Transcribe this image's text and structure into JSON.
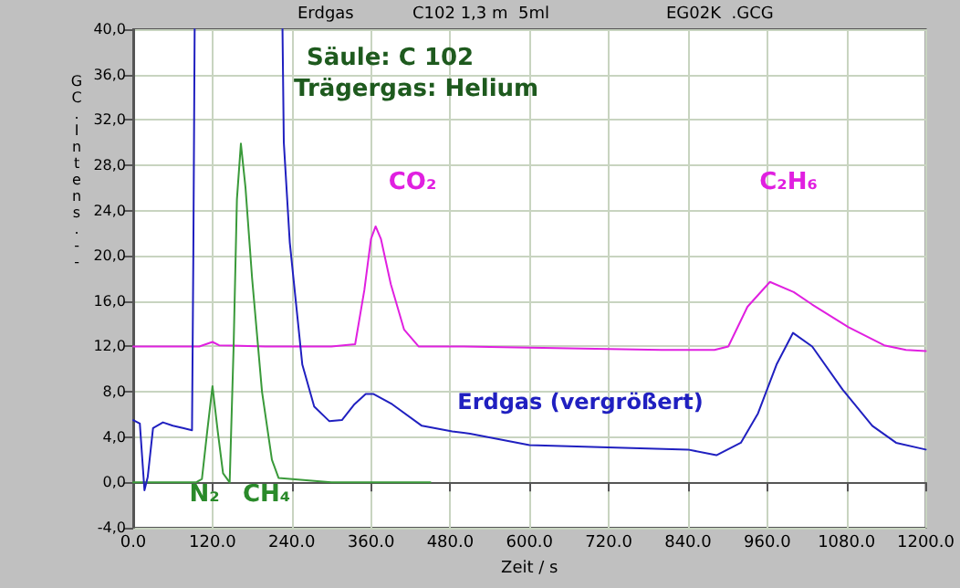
{
  "chart_data": {
    "type": "line",
    "xlabel": "Zeit / s",
    "ylabel": "GC.Intens.--",
    "xlim": [
      0,
      1200
    ],
    "xticks": [
      {
        "value": 0,
        "label": "0.0"
      },
      {
        "value": 120,
        "label": "120.0"
      },
      {
        "value": 240,
        "label": "240.0"
      },
      {
        "value": 360,
        "label": "360.0"
      },
      {
        "value": 480,
        "label": "480.0"
      },
      {
        "value": 600,
        "label": "600.0"
      },
      {
        "value": 720,
        "label": "720.0"
      },
      {
        "value": 840,
        "label": "840.0"
      },
      {
        "value": 960,
        "label": "960.0"
      },
      {
        "value": 1080,
        "label": "1080.0"
      },
      {
        "value": 1200,
        "label": "1200.0"
      }
    ],
    "ylim": [
      -4,
      40
    ],
    "yticks": [
      {
        "value": -4,
        "label": "-4,0"
      },
      {
        "value": 0,
        "label": "0,0"
      },
      {
        "value": 4,
        "label": "4,0"
      },
      {
        "value": 8,
        "label": "8,0"
      },
      {
        "value": 12,
        "label": "12,0"
      },
      {
        "value": 16,
        "label": "16,0"
      },
      {
        "value": 20,
        "label": "20,0"
      },
      {
        "value": 24,
        "label": "24,0"
      },
      {
        "value": 28,
        "label": "28,0"
      },
      {
        "value": 32,
        "label": "32,0"
      },
      {
        "value": 36,
        "label": "36,0"
      },
      {
        "value": 40,
        "label": "40,0"
      }
    ],
    "grid": true,
    "marker": "none",
    "line_style": "solid",
    "series": [
      {
        "color": "#e020e0",
        "x": [
          0,
          100,
          115,
          120,
          130,
          200,
          300,
          336,
          350,
          360,
          367,
          375,
          390,
          410,
          432,
          500,
          600,
          700,
          800,
          880,
          901,
          930,
          964,
          1000,
          1028,
          1083,
          1137,
          1170,
          1200
        ],
        "values": [
          12,
          12,
          12.3,
          12.4,
          12.1,
          12,
          12,
          12.2,
          17,
          21.5,
          22.6,
          21.5,
          17.5,
          13.5,
          12,
          12,
          11.9,
          11.8,
          11.7,
          11.7,
          12,
          15.5,
          17.7,
          16.8,
          15.7,
          13.7,
          12.1,
          11.7,
          11.6
        ]
      },
      {
        "color": "#3a9a3a",
        "x": [
          0,
          95,
          104,
          112,
          120,
          128,
          136,
          146,
          152,
          157,
          163,
          170,
          180,
          195,
          210,
          220,
          300,
          450
        ],
        "values": [
          0,
          0,
          0.3,
          4.5,
          8.5,
          4.5,
          0.8,
          0,
          12,
          25,
          29.9,
          26,
          18,
          8,
          2,
          0.4,
          0,
          0
        ]
      },
      {
        "color": "#2020c0",
        "x": [
          0,
          10,
          17,
          22,
          30,
          45,
          60,
          75,
          89,
          91,
          93,
          100,
          226,
          228,
          237,
          256,
          274,
          297,
          316,
          335,
          352,
          364,
          392,
          437,
          483,
          510,
          600,
          719,
          840,
          883,
          920,
          946,
          974,
          999,
          1028,
          1074,
          1119,
          1155,
          1200
        ],
        "values": [
          5.5,
          5.2,
          -0.7,
          0.5,
          4.8,
          5.3,
          5.0,
          4.8,
          4.6,
          20,
          40,
          null,
          40,
          30,
          21.2,
          10.4,
          6.7,
          5.4,
          5.5,
          6.9,
          7.8,
          7.8,
          6.9,
          5.0,
          4.5,
          4.3,
          3.3,
          3.1,
          2.9,
          2.4,
          3.5,
          6.1,
          10.4,
          13.2,
          12.0,
          8.2,
          5.0,
          3.5,
          2.9
        ]
      }
    ],
    "annotations": [
      "Erdgas",
      "C102 1,3 m  5ml",
      "EG02K  .GCG",
      "Säule: C 102",
      "Trägergas: Helium",
      "CO₂",
      "C₂H₆",
      "Erdgas (vergrößert)",
      "N₂",
      "CH₄"
    ]
  }
}
